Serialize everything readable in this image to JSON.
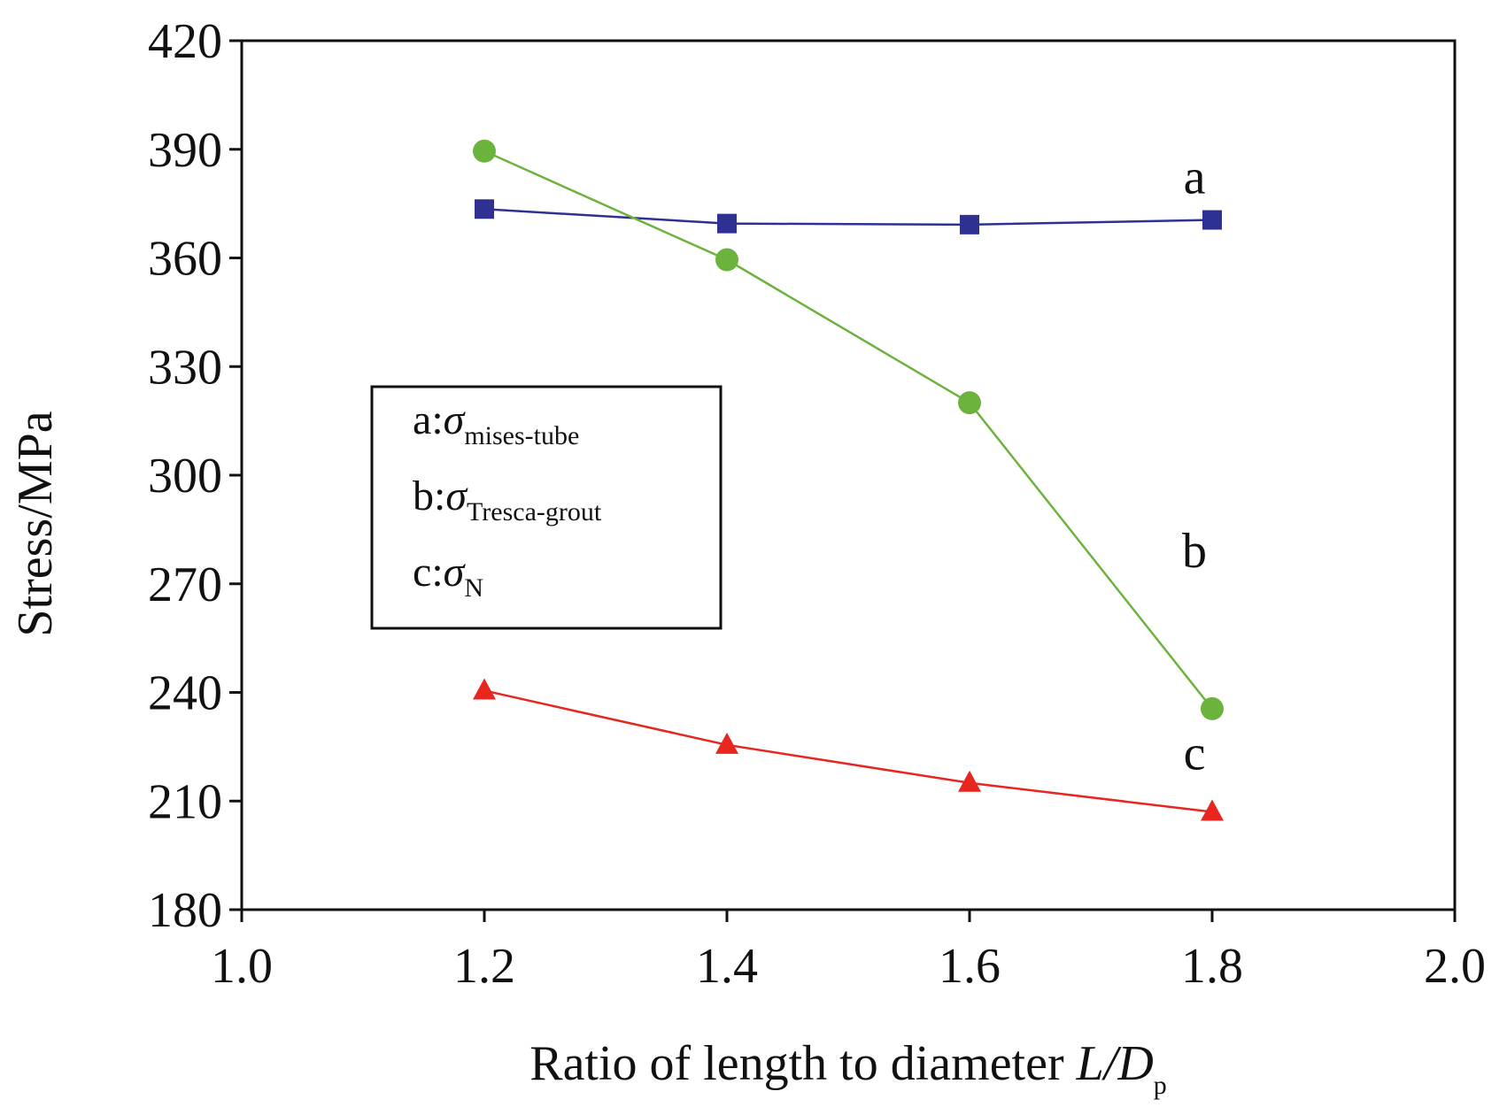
{
  "chart_data": {
    "type": "line",
    "title": "",
    "xlabel": {
      "text": "Ratio of length to diameter ",
      "italic": "L/D",
      "subscript": "p"
    },
    "ylabel": "Stress/MPa",
    "xlim": [
      1.0,
      2.0
    ],
    "ylim": [
      180,
      420
    ],
    "xticks": [
      "1.0",
      "1.2",
      "1.4",
      "1.6",
      "1.8",
      "2.0"
    ],
    "yticks": [
      "180",
      "210",
      "240",
      "270",
      "300",
      "330",
      "360",
      "390",
      "420"
    ],
    "grid": false,
    "legend_position": "center-left",
    "x": [
      1.2,
      1.4,
      1.6,
      1.8
    ],
    "series": [
      {
        "name": "a",
        "legend_symbol": "σ",
        "legend_subscript": "mises-tube",
        "values": [
          373.5,
          369.5,
          369.2,
          370.5
        ],
        "color": "#2e3192",
        "marker": "square"
      },
      {
        "name": "b",
        "legend_symbol": "σ",
        "legend_subscript": "Tresca-grout",
        "values": [
          389.5,
          359.5,
          320.0,
          235.5
        ],
        "color": "#6cb33e",
        "marker": "circle"
      },
      {
        "name": "c",
        "legend_symbol": "σ",
        "legend_subscript": "N",
        "values": [
          240.5,
          225.5,
          215.0,
          207.0
        ],
        "color": "#e8251f",
        "marker": "triangle"
      }
    ]
  }
}
